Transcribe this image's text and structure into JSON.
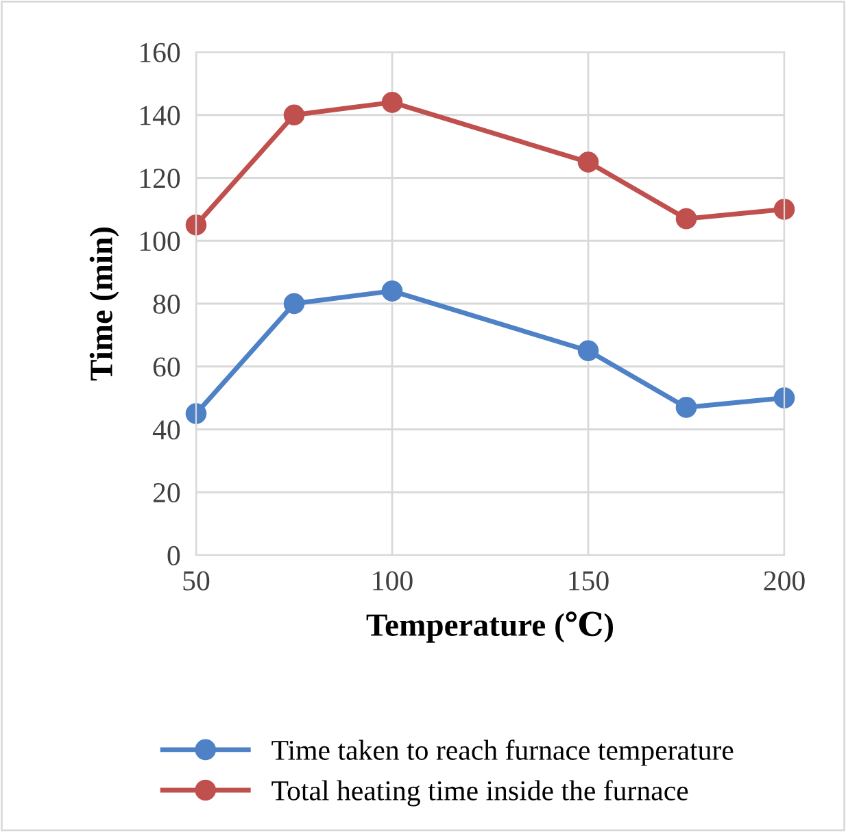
{
  "chart_data": {
    "type": "line",
    "xlabel": "Temperature (℃)",
    "ylabel": "Time (min)",
    "x": [
      50,
      75,
      100,
      150,
      175,
      200
    ],
    "series": [
      {
        "name": "Time taken to reach furnace temperature",
        "color": "#4f81c6",
        "values": [
          45,
          80,
          84,
          65,
          47,
          50
        ]
      },
      {
        "name": "Total heating time inside the furnace",
        "color": "#c0504d",
        "values": [
          105,
          140,
          144,
          125,
          107,
          110
        ]
      }
    ],
    "xlim": [
      50,
      200
    ],
    "xticks": [
      50,
      100,
      150,
      200
    ],
    "ylim": [
      0,
      160
    ],
    "yticks": [
      0,
      20,
      40,
      60,
      80,
      100,
      120,
      140,
      160
    ],
    "grid": true,
    "legend": "bottom",
    "marker": "circle",
    "line_style": "solid"
  }
}
